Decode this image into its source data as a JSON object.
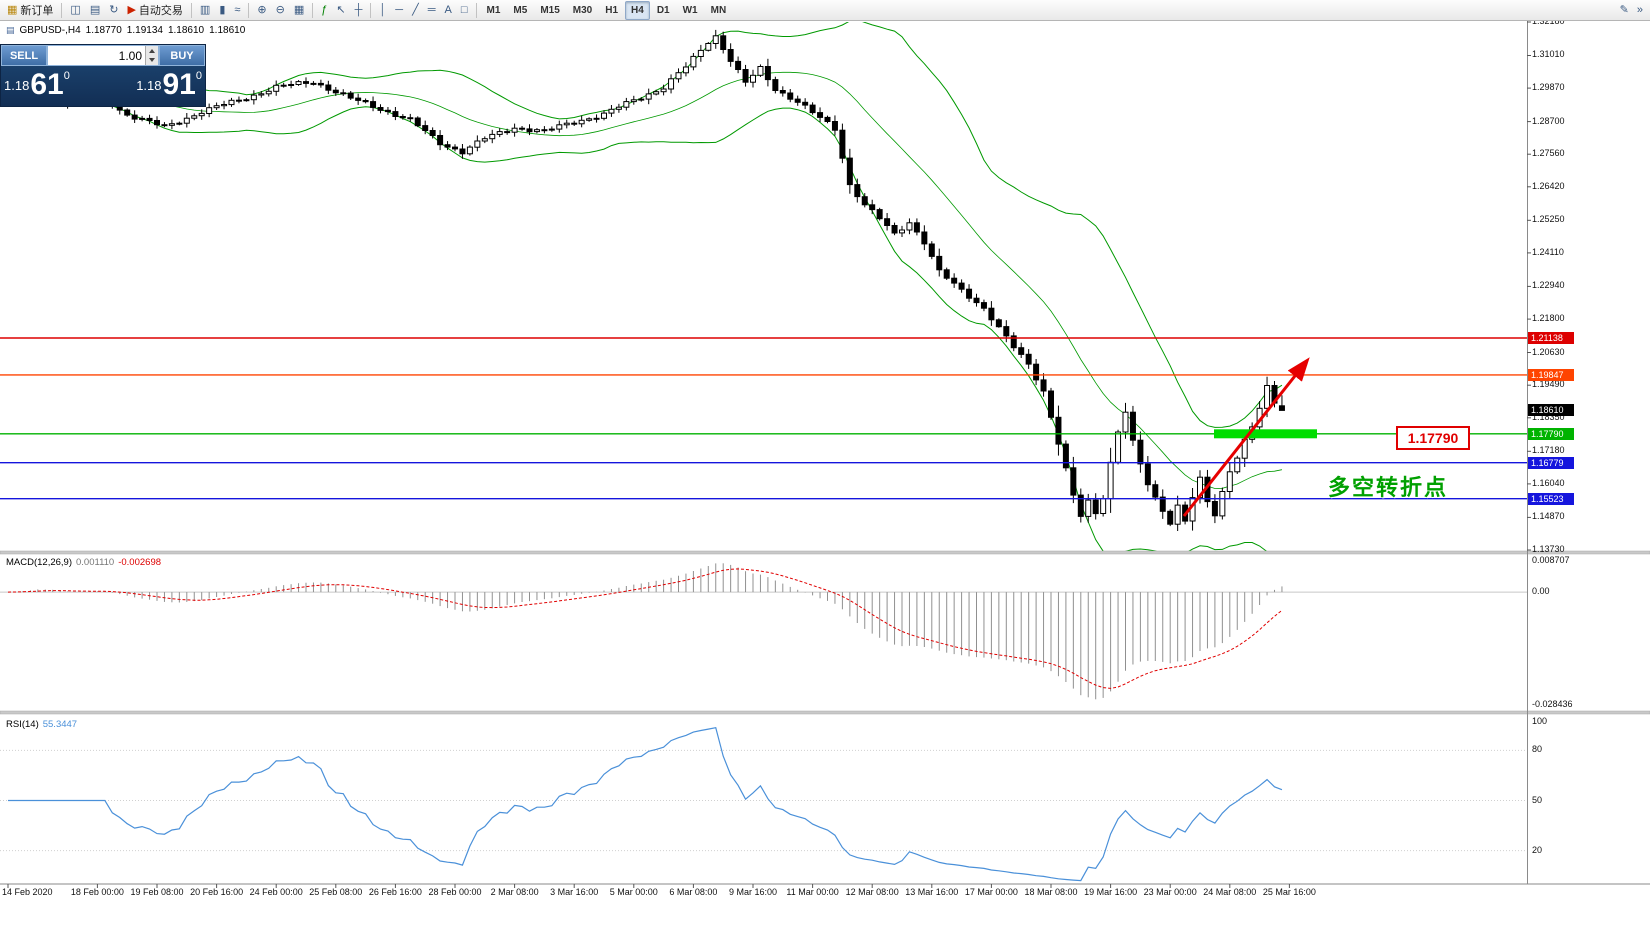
{
  "window": {
    "toolbar": {
      "left_groups": [
        {
          "items": [
            {
              "name": "new-order",
              "glyph": "▦",
              "label": "新订单",
              "color": "#b8860b"
            }
          ]
        },
        {
          "items": [
            {
              "name": "charts-window",
              "glyph": "◫"
            },
            {
              "name": "profiles",
              "glyph": "▤"
            },
            {
              "name": "refresh",
              "glyph": "↻"
            },
            {
              "name": "auto-trading",
              "glyph": "▶",
              "label": "自动交易",
              "color": "#cc2200"
            }
          ]
        },
        {
          "items": [
            {
              "name": "bar-chart",
              "glyph": "▥"
            },
            {
              "name": "candlestick-chart",
              "glyph": "▮"
            },
            {
              "name": "line-chart",
              "glyph": "≈"
            }
          ]
        },
        {
          "items": [
            {
              "name": "zoom-in",
              "glyph": "⊕"
            },
            {
              "name": "zoom-out",
              "glyph": "⊖"
            },
            {
              "name": "tile-windows",
              "glyph": "▦"
            }
          ]
        },
        {
          "items": [
            {
              "name": "indicators",
              "glyph": "ƒ",
              "color": "#008000"
            },
            {
              "name": "cursor",
              "glyph": "↖"
            },
            {
              "name": "crosshair",
              "glyph": "┼"
            }
          ]
        },
        {
          "items": [
            {
              "name": "vertical-line",
              "glyph": "│"
            },
            {
              "name": "horizontal-line",
              "glyph": "─"
            },
            {
              "name": "trendline",
              "glyph": "╱"
            },
            {
              "name": "equidistant-channel",
              "glyph": "═"
            },
            {
              "name": "text-label",
              "glyph": "A"
            },
            {
              "name": "shapes",
              "glyph": "□"
            }
          ]
        }
      ],
      "timeframes": [
        "M1",
        "M5",
        "M15",
        "M30",
        "H1",
        "H4",
        "D1",
        "W1",
        "MN"
      ],
      "active_timeframe": "H4",
      "right_icons": [
        {
          "name": "customize-toolbar",
          "glyph": "✎"
        },
        {
          "name": "toolbar-overflow",
          "glyph": "»"
        }
      ]
    }
  },
  "one_click": {
    "sell_label": "SELL",
    "buy_label": "BUY",
    "volume": "1.00",
    "bid": {
      "prefix": "1.18",
      "big": "61",
      "sup": "0"
    },
    "ask": {
      "prefix": "1.18",
      "big": "91",
      "sup": "0"
    }
  },
  "chart": {
    "title": {
      "icon": "▤",
      "symbol": "GBPUSD-,H4",
      "open": "1.18770",
      "high": "1.19134",
      "low": "1.18610",
      "close": "1.18610"
    },
    "price_axis_labels": [
      "1.32180",
      "1.31010",
      "1.29870",
      "1.28700",
      "1.27560",
      "1.26420",
      "1.25250",
      "1.24110",
      "1.22940",
      "1.21800",
      "1.20630",
      "1.19490",
      "1.18350",
      "1.17180",
      "1.16040",
      "1.14870",
      "1.13730"
    ],
    "time_axis_labels": [
      "14 Feb 2020",
      "18 Feb 00:00",
      "19 Feb 08:00",
      "20 Feb 16:00",
      "24 Feb 00:00",
      "25 Feb 08:00",
      "26 Feb 16:00",
      "28 Feb 00:00",
      "2 Mar 08:00",
      "3 Mar 16:00",
      "5 Mar 00:00",
      "6 Mar 08:00",
      "9 Mar 16:00",
      "11 Mar 00:00",
      "12 Mar 08:00",
      "13 Mar 16:00",
      "17 Mar 00:00",
      "18 Mar 08:00",
      "19 Mar 16:00",
      "23 Mar 00:00",
      "24 Mar 08:00",
      "25 Mar 16:00"
    ],
    "price_tags": [
      {
        "text": "1.21138",
        "price": 1.21138,
        "bg": "#dd0000"
      },
      {
        "text": "1.19847",
        "price": 1.19847,
        "bg": "#ff4400"
      },
      {
        "text": "1.18610",
        "price": 1.1861,
        "bg": "#000000"
      },
      {
        "text": "1.17790",
        "price": 1.1779,
        "bg": "#00b300"
      },
      {
        "text": "1.16779",
        "price": 1.16779,
        "bg": "#1515dd"
      },
      {
        "text": "1.15523",
        "price": 1.15523,
        "bg": "#1515dd"
      }
    ],
    "annotations": {
      "turning_point": "多空转折点",
      "price_callout": "1.17790"
    }
  },
  "macd_panel": {
    "name": "MACD(12,26,9)",
    "value": "0.001110",
    "signal": "-0.002698",
    "scale": [
      {
        "text": "0.008707",
        "v": 0.008707
      },
      {
        "text": "0.00",
        "v": 0
      },
      {
        "text": "-0.028436",
        "v": -0.028436
      }
    ]
  },
  "rsi_panel": {
    "name": "RSI(14)",
    "value": "55.3447",
    "scale": [
      {
        "text": "100",
        "v": 100
      },
      {
        "text": "80",
        "v": 80
      },
      {
        "text": "50",
        "v": 50
      },
      {
        "text": "20",
        "v": 20
      }
    ]
  },
  "chart_data": {
    "type": "candlestick",
    "symbol": "GBPUSD",
    "timeframe": "H4",
    "last_ohlc": {
      "open": 1.1877,
      "high": 1.19134,
      "low": 1.1861,
      "close": 1.1861
    },
    "price_axis_range": [
      1.1373,
      1.3218
    ],
    "num_candles": 172,
    "close_anchors": [
      [
        0,
        1.295
      ],
      [
        4,
        1.2985
      ],
      [
        8,
        1.294
      ],
      [
        12,
        1.2965
      ],
      [
        16,
        1.2895
      ],
      [
        21,
        1.285
      ],
      [
        26,
        1.2905
      ],
      [
        31,
        1.2945
      ],
      [
        36,
        1.299
      ],
      [
        41,
        1.301
      ],
      [
        46,
        1.295
      ],
      [
        50,
        1.2915
      ],
      [
        54,
        1.2875
      ],
      [
        58,
        1.2795
      ],
      [
        61,
        1.2765
      ],
      [
        64,
        1.281
      ],
      [
        68,
        1.285
      ],
      [
        72,
        1.2835
      ],
      [
        76,
        1.287
      ],
      [
        80,
        1.2895
      ],
      [
        84,
        1.2945
      ],
      [
        88,
        1.299
      ],
      [
        91,
        1.306
      ],
      [
        94,
        1.315
      ],
      [
        95,
        1.317
      ],
      [
        97,
        1.3085
      ],
      [
        99,
        1.3005
      ],
      [
        101,
        1.3055
      ],
      [
        103,
        1.2985
      ],
      [
        106,
        1.294
      ],
      [
        108,
        1.29
      ],
      [
        111,
        1.2845
      ],
      [
        113,
        1.265
      ],
      [
        115,
        1.258
      ],
      [
        117,
        1.253
      ],
      [
        119,
        1.2475
      ],
      [
        121,
        1.252
      ],
      [
        123,
        1.245
      ],
      [
        125,
        1.2345
      ],
      [
        127,
        1.23
      ],
      [
        129,
        1.226
      ],
      [
        131,
        1.222
      ],
      [
        133,
        1.215
      ],
      [
        135,
        1.208
      ],
      [
        137,
        1.202
      ],
      [
        139,
        1.193
      ],
      [
        141,
        1.175
      ],
      [
        143,
        1.156
      ],
      [
        144,
        1.149
      ],
      [
        145,
        1.154
      ],
      [
        146,
        1.15
      ],
      [
        147,
        1.156
      ],
      [
        148,
        1.168
      ],
      [
        149,
        1.179
      ],
      [
        150,
        1.186
      ],
      [
        151,
        1.175
      ],
      [
        152,
        1.167
      ],
      [
        153,
        1.16
      ],
      [
        154,
        1.155
      ],
      [
        155,
        1.151
      ],
      [
        156,
        1.147
      ],
      [
        157,
        1.153
      ],
      [
        158,
        1.148
      ],
      [
        159,
        1.156
      ],
      [
        160,
        1.162
      ],
      [
        161,
        1.154
      ],
      [
        162,
        1.149
      ],
      [
        163,
        1.157
      ],
      [
        164,
        1.165
      ],
      [
        165,
        1.17
      ],
      [
        166,
        1.176
      ],
      [
        167,
        1.181
      ],
      [
        168,
        1.187
      ],
      [
        169,
        1.194
      ],
      [
        170,
        1.1885
      ],
      [
        171,
        1.1861
      ]
    ],
    "levels": [
      {
        "price": 1.21138,
        "color": "#dd0000"
      },
      {
        "price": 1.19847,
        "color": "#ff4400"
      },
      {
        "price": 1.1779,
        "color": "#00b300"
      },
      {
        "price": 1.16779,
        "color": "#1515dd"
      },
      {
        "price": 1.15523,
        "color": "#1515dd"
      }
    ],
    "overlays": [
      {
        "name": "Bollinger Bands",
        "period": 20,
        "deviation": 2,
        "color": "#009900"
      }
    ],
    "indicators": [
      {
        "name": "MACD",
        "params": [
          12,
          26,
          9
        ],
        "last": 0.00111,
        "signal_last": -0.002698,
        "scale_top": 0.008707,
        "scale_bottom": -0.028436,
        "histogram_color": "#909090",
        "signal_color": "#e00000"
      },
      {
        "name": "RSI",
        "params": [
          14
        ],
        "last": 55.3447,
        "scale": [
          0,
          100
        ],
        "color": "#4a90d9"
      }
    ],
    "highlight_band": {
      "price": 1.1779,
      "color": "#00dd00"
    },
    "trend_arrow": {
      "color": "#e60000",
      "direction": "up"
    }
  }
}
